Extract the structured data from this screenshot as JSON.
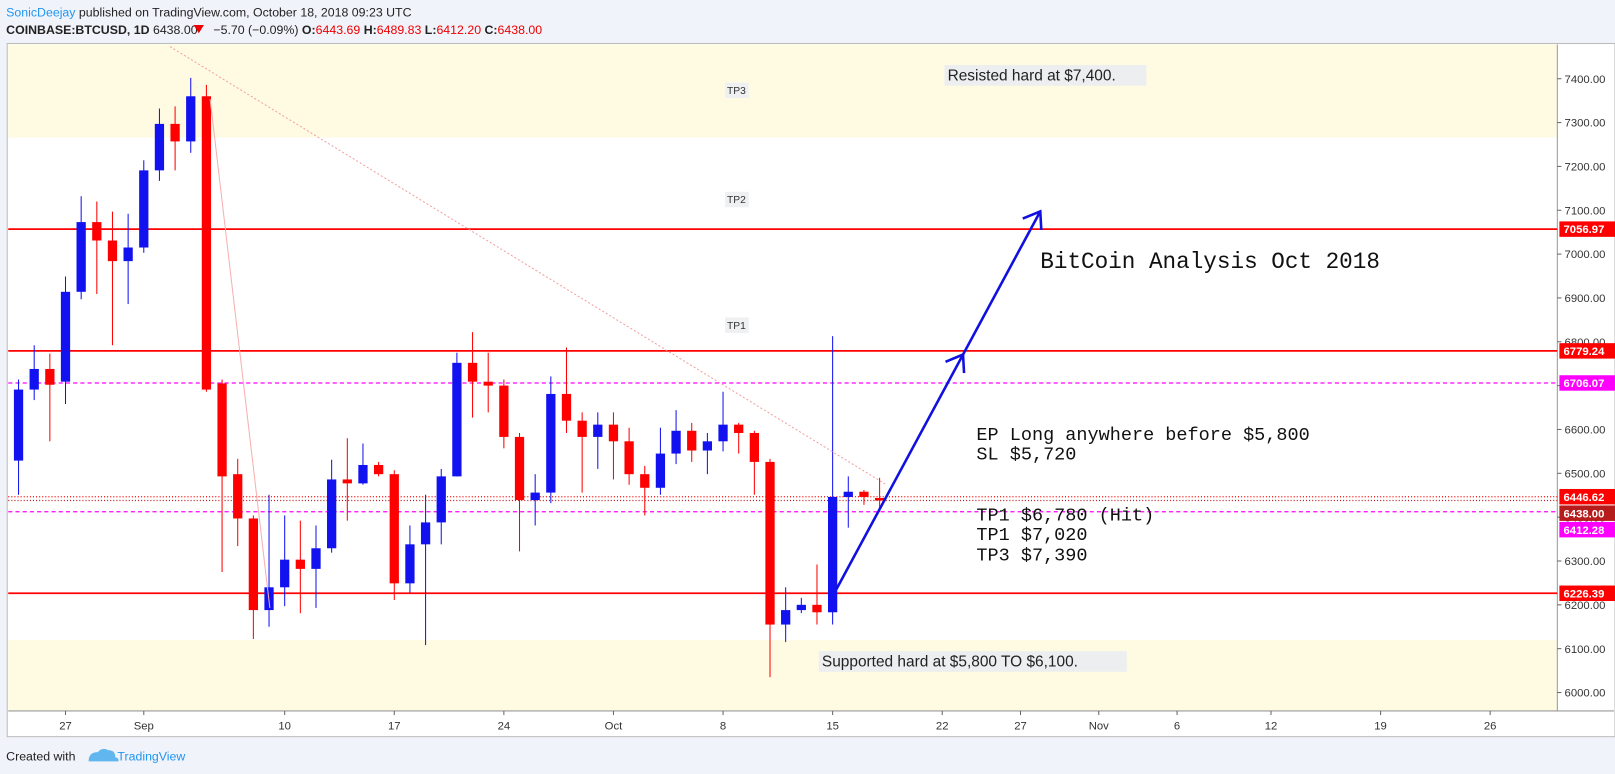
{
  "header": {
    "author": "SonicDeejay",
    "published": "published on TradingView.com, October 18, 2018 09:23 UTC",
    "symbol": "COINBASE:BTCUSD, 1D",
    "last": "6438.00",
    "change": "−5.70 (−0.09%)",
    "o_label": "O:",
    "o": "6443.69",
    "h_label": "H:",
    "h": "6489.83",
    "l_label": "L:",
    "l": "6412.20",
    "c_label": "C:",
    "c": "6438.00"
  },
  "footer": {
    "created": "Created with",
    "brand": "TradingView"
  },
  "chart_data": {
    "type": "candlestick",
    "categories": [
      null,
      null,
      null,
      "27",
      null,
      null,
      null,
      null,
      "Sep",
      null,
      null,
      null,
      null,
      null,
      null,
      null,
      null,
      "10",
      null,
      null,
      null,
      null,
      null,
      null,
      "17",
      null,
      null,
      null,
      null,
      null,
      null,
      "24",
      null,
      null,
      null,
      null,
      null,
      null,
      "Oct",
      null,
      null,
      null,
      null,
      null,
      null,
      "8",
      null,
      null,
      null,
      null,
      null,
      null,
      "15",
      null,
      null,
      null,
      null,
      null,
      null,
      "22",
      null,
      null,
      null,
      null,
      "27",
      null,
      null,
      null,
      null,
      "Nov",
      null,
      null,
      null,
      null,
      "6",
      null,
      null,
      null,
      null,
      null,
      "12",
      null,
      null,
      null,
      null,
      null,
      null,
      "19",
      null,
      null,
      null,
      null,
      null,
      null,
      "26",
      null,
      null,
      null
    ],
    "open": [
      6529,
      6691,
      6738,
      6709,
      6914,
      7073,
      7031,
      6984,
      7015,
      7191,
      7297,
      7257,
      7360,
      6705,
      6498,
      6397,
      6188,
      6240,
      6303,
      6282,
      6329,
      6486,
      6477,
      6519,
      6498,
      6249,
      6338,
      6388,
      6493,
      6752,
      6709,
      6700,
      6583,
      6439,
      6456,
      6681,
      6620,
      6583,
      6611,
      6573,
      6498,
      6467,
      6545,
      6597,
      6552,
      6573,
      6611,
      6592,
      6526,
      6155,
      6188,
      6200,
      6183,
      6446,
      6458,
      6443.69,
      null,
      null,
      null,
      null,
      null,
      null,
      null,
      null,
      null,
      null,
      null,
      null,
      null,
      null,
      null,
      null,
      null,
      null,
      null,
      null,
      null,
      null,
      null,
      null,
      null,
      null,
      null,
      null,
      null,
      null,
      null,
      null,
      null,
      null,
      null,
      null,
      null,
      null,
      null,
      null,
      null,
      null
    ],
    "high": [
      6714,
      6792,
      6773,
      6949,
      7132,
      7120,
      7097,
      7092,
      7214,
      7332,
      7337,
      7402,
      7386,
      6714,
      6533,
      6404,
      6451,
      6404,
      6392,
      6381,
      6531,
      6580,
      6568,
      6526,
      6507,
      6381,
      6451,
      6510,
      6775,
      6822,
      6775,
      6714,
      6592,
      6498,
      6721,
      6787,
      6639,
      6639,
      6639,
      6604,
      6517,
      6604,
      6644,
      6615,
      6592,
      6686,
      6615,
      6597,
      6533,
      6240,
      6216,
      6292,
      6813,
      6493,
      6462,
      6489.83,
      null,
      null,
      null,
      null,
      null,
      null,
      null,
      null,
      null,
      null,
      null,
      null,
      null,
      null,
      null,
      null,
      null,
      null,
      null,
      null,
      null,
      null,
      null,
      null,
      null,
      null,
      null,
      null,
      null,
      null,
      null,
      null,
      null,
      null,
      null,
      null,
      null,
      null,
      null,
      null,
      null,
      null
    ],
    "low": [
      6451,
      6667,
      6573,
      6658,
      6897,
      6909,
      6792,
      6886,
      7003,
      7167,
      7191,
      7231,
      6686,
      6275,
      6334,
      6122,
      6150,
      6197,
      6181,
      6193,
      6319,
      6392,
      6474,
      6493,
      6211,
      6228,
      6108,
      6338,
      6493,
      6627,
      6639,
      6557,
      6322,
      6381,
      6432,
      6592,
      6456,
      6510,
      6486,
      6474,
      6404,
      6451,
      6521,
      6526,
      6498,
      6550,
      6545,
      6451,
      6035,
      6115,
      6181,
      6155,
      6155,
      6376,
      6428,
      6412.2,
      null,
      null,
      null,
      null,
      null,
      null,
      null,
      null,
      null,
      null,
      null,
      null,
      null,
      null,
      null,
      null,
      null,
      null,
      null,
      null,
      null,
      null,
      null,
      null,
      null,
      null,
      null,
      null,
      null,
      null,
      null,
      null,
      null,
      null,
      null,
      null,
      null,
      null,
      null,
      null,
      null,
      null
    ],
    "close": [
      6691,
      6738,
      6702,
      6914,
      7073,
      7031,
      6984,
      7015,
      7191,
      7297,
      7257,
      7360,
      6691,
      6493,
      6397,
      6188,
      6240,
      6303,
      6282,
      6329,
      6486,
      6477,
      6519,
      6498,
      6249,
      6338,
      6388,
      6493,
      6752,
      6709,
      6700,
      6583,
      6439,
      6456,
      6681,
      6620,
      6583,
      6611,
      6573,
      6498,
      6467,
      6545,
      6597,
      6552,
      6573,
      6611,
      6592,
      6526,
      6155,
      6188,
      6200,
      6183,
      6446,
      6458,
      6446,
      6438,
      null,
      null,
      null,
      null,
      null,
      null,
      null,
      null,
      null,
      null,
      null,
      null,
      null,
      null,
      null,
      null,
      null,
      null,
      null,
      null,
      null,
      null,
      null,
      null,
      null,
      null,
      null,
      null,
      null,
      null,
      null,
      null,
      null,
      null,
      null,
      null,
      null,
      null,
      null,
      null,
      null,
      null
    ],
    "up_color": "#1212f0",
    "down_color": "#ff0000",
    "ylim": [
      5958,
      7478
    ],
    "yticks": [
      {
        "value": 6000,
        "label": "6000.00"
      },
      {
        "value": 6100,
        "label": "6100.00"
      },
      {
        "value": 6200,
        "label": "6200.00"
      },
      {
        "value": 6300,
        "label": "6300.00"
      },
      {
        "value": 6400,
        "label": "6400.00"
      },
      {
        "value": 6500,
        "label": "6500.00"
      },
      {
        "value": 6600,
        "label": "6600.00"
      },
      {
        "value": 6700,
        "label": "6700.00"
      },
      {
        "value": 6800,
        "label": "6800.00"
      },
      {
        "value": 6900,
        "label": "6900.00"
      },
      {
        "value": 7000,
        "label": "7000.00"
      },
      {
        "value": 7100,
        "label": "7100.00"
      },
      {
        "value": 7200,
        "label": "7200.00"
      },
      {
        "value": 7300,
        "label": "7300.00"
      },
      {
        "value": 7400,
        "label": "7400.00"
      }
    ],
    "grid": false,
    "zones": [
      {
        "from": 7266,
        "to": 7478,
        "color": "#fffbe3"
      },
      {
        "from": 5958,
        "to": 6120,
        "color": "#fffbe3"
      }
    ],
    "levels": [
      {
        "value": 7056.97,
        "color": "#ff0000",
        "style": "solid"
      },
      {
        "value": 6779.24,
        "color": "#ff0000",
        "style": "solid"
      },
      {
        "value": 6706.07,
        "color": "#ff00ff",
        "style": "dashed"
      },
      {
        "value": 6446.62,
        "color": "#ff0000",
        "style": "dotted"
      },
      {
        "value": 6438.0,
        "label": "6438.00",
        "color": "#b71c1c",
        "style": "dotted"
      },
      {
        "value": 6412.28,
        "color": "#ff00ff",
        "style": "dashed"
      },
      {
        "value": 6226.39,
        "color": "#ff0000",
        "style": "solid"
      }
    ],
    "tp_labels": [
      "TP3",
      "TP2",
      "TP1"
    ],
    "annotations": [
      "Resisted hard at $7,400.",
      "Supported hard at $5,800 TO $6,100.",
      "BitCoin Analysis Oct 2018",
      "EP Long anywhere before $5,800",
      "SL $5,720",
      "TP1 $6,780 (Hit)",
      "TP1 $7,020",
      "TP3 $7,390"
    ]
  }
}
